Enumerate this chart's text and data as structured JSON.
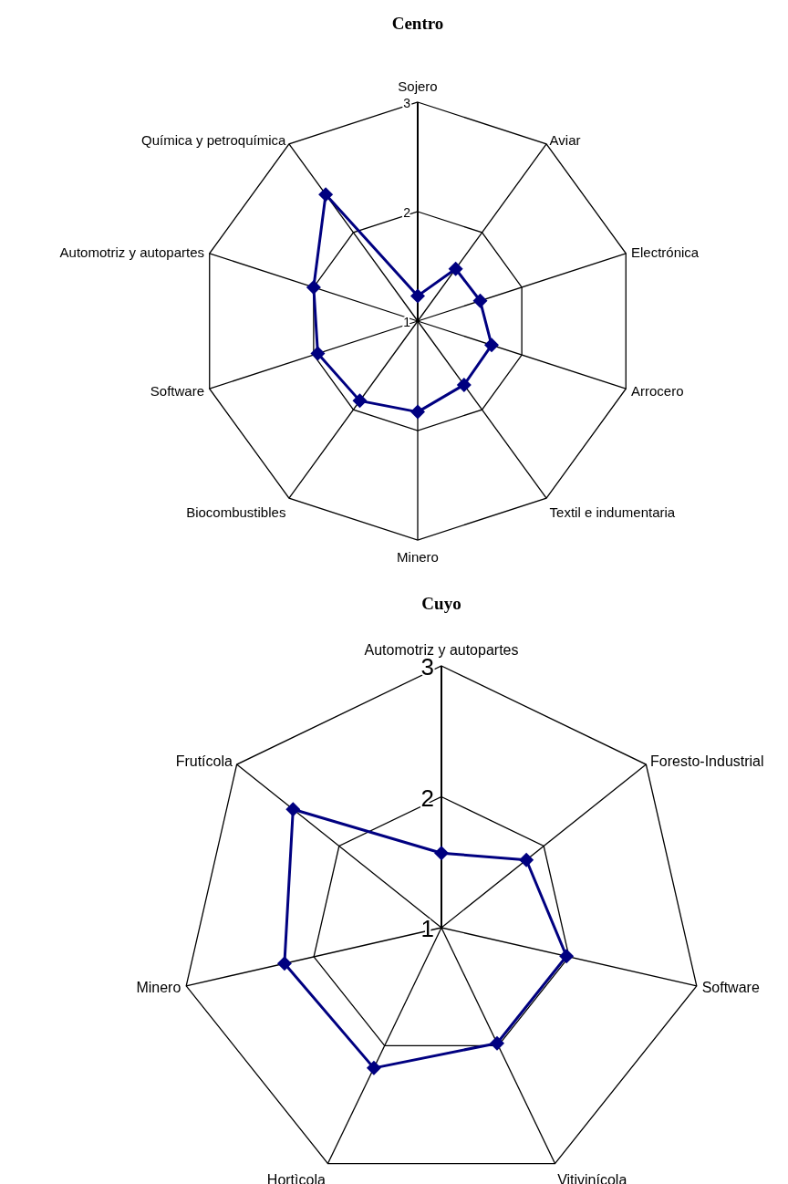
{
  "chart_data": [
    {
      "type": "radar",
      "title": "Centro",
      "categories": [
        "Sojero",
        "Aviar",
        "Electrónica",
        "Arrocero",
        "Textil e indumentaria",
        "Minero",
        "Biocombustibles",
        "Software",
        "Automotriz y autopartes",
        "Química y petroquímica"
      ],
      "series": [
        {
          "color": "#000080",
          "values": [
            1.23,
            1.59,
            1.6,
            1.71,
            1.72,
            1.83,
            1.9,
            1.96,
            2.0,
            2.43
          ]
        }
      ],
      "ylim": [
        1,
        3
      ],
      "yticks": [
        1,
        2,
        3
      ],
      "grid": true,
      "marker": "diamond",
      "line_style": "solid"
    },
    {
      "type": "radar",
      "title": "Cuyo",
      "categories": [
        "Automotriz y autopartes",
        "Foresto-Industrial",
        "Software",
        "Vitivinícola",
        "Hortìcola",
        "Minero",
        "Frutícola"
      ],
      "series": [
        {
          "color": "#000080",
          "values": [
            1.57,
            1.83,
            1.98,
            1.98,
            2.19,
            2.23,
            2.45
          ]
        }
      ],
      "ylim": [
        1,
        3
      ],
      "yticks": [
        1,
        2,
        3
      ],
      "grid": true,
      "marker": "diamond",
      "line_style": "solid"
    }
  ]
}
